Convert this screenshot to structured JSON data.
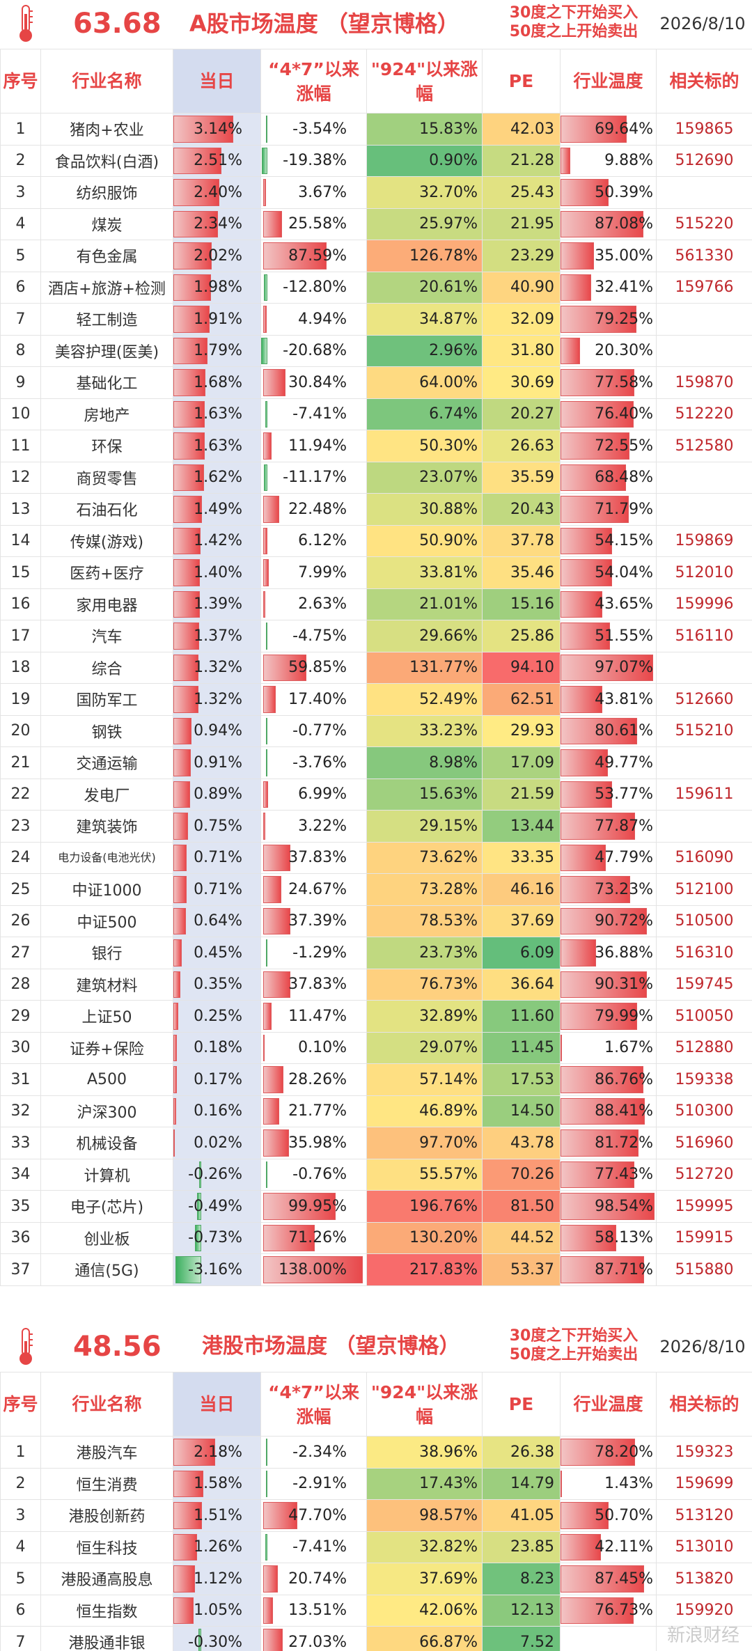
{
  "a_share": {
    "temperature": "63.68",
    "title": "A股市场温度 （望京博格）",
    "note_line1": "30度之下开始买入",
    "note_line2": "50度之上开始卖出",
    "date": "2026/8/10",
    "headers": {
      "no": "序号",
      "name": "行业名称",
      "day": "当日",
      "since47": "“4*7”以来涨幅",
      "since924": "\"924\"以来涨幅",
      "pe": "PE",
      "temp": "行业温度",
      "code": "相关标的"
    },
    "rows": [
      {
        "no": "1",
        "name": "猪肉+农业",
        "day": "3.14%",
        "d": 3.14,
        "s47": "-3.54%",
        "v47": -3.54,
        "s924": "15.83%",
        "v924": 15.83,
        "pe": "42.03",
        "vpe": 42.03,
        "temp": "69.64%",
        "vt": 69.64,
        "code": "159865"
      },
      {
        "no": "2",
        "name": "食品饮料(白酒)",
        "day": "2.51%",
        "d": 2.51,
        "s47": "-19.38%",
        "v47": -19.38,
        "s924": "0.90%",
        "v924": 0.9,
        "pe": "21.28",
        "vpe": 21.28,
        "temp": "9.88%",
        "vt": 9.88,
        "code": "512690"
      },
      {
        "no": "3",
        "name": "纺织服饰",
        "day": "2.40%",
        "d": 2.4,
        "s47": "3.67%",
        "v47": 3.67,
        "s924": "32.70%",
        "v924": 32.7,
        "pe": "25.43",
        "vpe": 25.43,
        "temp": "50.39%",
        "vt": 50.39,
        "code": ""
      },
      {
        "no": "4",
        "name": "煤炭",
        "day": "2.34%",
        "d": 2.34,
        "s47": "25.58%",
        "v47": 25.58,
        "s924": "25.97%",
        "v924": 25.97,
        "pe": "21.95",
        "vpe": 21.95,
        "temp": "87.08%",
        "vt": 87.08,
        "code": "515220"
      },
      {
        "no": "5",
        "name": "有色金属",
        "day": "2.02%",
        "d": 2.02,
        "s47": "87.59%",
        "v47": 87.59,
        "s924": "126.78%",
        "v924": 126.78,
        "pe": "23.29",
        "vpe": 23.29,
        "temp": "35.00%",
        "vt": 35.0,
        "code": "561330"
      },
      {
        "no": "6",
        "name": "酒店+旅游+检测",
        "day": "1.98%",
        "d": 1.98,
        "s47": "-12.80%",
        "v47": -12.8,
        "s924": "20.61%",
        "v924": 20.61,
        "pe": "40.90",
        "vpe": 40.9,
        "temp": "32.41%",
        "vt": 32.41,
        "code": "159766"
      },
      {
        "no": "7",
        "name": "轻工制造",
        "day": "1.91%",
        "d": 1.91,
        "s47": "4.94%",
        "v47": 4.94,
        "s924": "34.87%",
        "v924": 34.87,
        "pe": "32.09",
        "vpe": 32.09,
        "temp": "79.25%",
        "vt": 79.25,
        "code": ""
      },
      {
        "no": "8",
        "name": "美容护理(医美)",
        "day": "1.79%",
        "d": 1.79,
        "s47": "-20.68%",
        "v47": -20.68,
        "s924": "2.96%",
        "v924": 2.96,
        "pe": "31.80",
        "vpe": 31.8,
        "temp": "20.30%",
        "vt": 20.3,
        "code": ""
      },
      {
        "no": "9",
        "name": "基础化工",
        "day": "1.68%",
        "d": 1.68,
        "s47": "30.84%",
        "v47": 30.84,
        "s924": "64.00%",
        "v924": 64.0,
        "pe": "30.69",
        "vpe": 30.69,
        "temp": "77.58%",
        "vt": 77.58,
        "code": "159870"
      },
      {
        "no": "10",
        "name": "房地产",
        "day": "1.63%",
        "d": 1.63,
        "s47": "-7.41%",
        "v47": -7.41,
        "s924": "6.74%",
        "v924": 6.74,
        "pe": "20.27",
        "vpe": 20.27,
        "temp": "76.40%",
        "vt": 76.4,
        "code": "512220"
      },
      {
        "no": "11",
        "name": "环保",
        "day": "1.63%",
        "d": 1.63,
        "s47": "11.94%",
        "v47": 11.94,
        "s924": "50.30%",
        "v924": 50.3,
        "pe": "26.63",
        "vpe": 26.63,
        "temp": "72.55%",
        "vt": 72.55,
        "code": "512580"
      },
      {
        "no": "12",
        "name": "商贸零售",
        "day": "1.62%",
        "d": 1.62,
        "s47": "-11.17%",
        "v47": -11.17,
        "s924": "23.07%",
        "v924": 23.07,
        "pe": "35.59",
        "vpe": 35.59,
        "temp": "68.48%",
        "vt": 68.48,
        "code": ""
      },
      {
        "no": "13",
        "name": "石油石化",
        "day": "1.49%",
        "d": 1.49,
        "s47": "22.48%",
        "v47": 22.48,
        "s924": "30.88%",
        "v924": 30.88,
        "pe": "20.43",
        "vpe": 20.43,
        "temp": "71.79%",
        "vt": 71.79,
        "code": ""
      },
      {
        "no": "14",
        "name": "传媒(游戏)",
        "day": "1.42%",
        "d": 1.42,
        "s47": "6.12%",
        "v47": 6.12,
        "s924": "50.90%",
        "v924": 50.9,
        "pe": "37.78",
        "vpe": 37.78,
        "temp": "54.15%",
        "vt": 54.15,
        "code": "159869"
      },
      {
        "no": "15",
        "name": "医药+医疗",
        "day": "1.40%",
        "d": 1.4,
        "s47": "7.99%",
        "v47": 7.99,
        "s924": "33.81%",
        "v924": 33.81,
        "pe": "35.46",
        "vpe": 35.46,
        "temp": "54.04%",
        "vt": 54.04,
        "code": "512010"
      },
      {
        "no": "16",
        "name": "家用电器",
        "day": "1.39%",
        "d": 1.39,
        "s47": "2.63%",
        "v47": 2.63,
        "s924": "21.01%",
        "v924": 21.01,
        "pe": "15.16",
        "vpe": 15.16,
        "temp": "43.65%",
        "vt": 43.65,
        "code": "159996"
      },
      {
        "no": "17",
        "name": "汽车",
        "day": "1.37%",
        "d": 1.37,
        "s47": "-4.75%",
        "v47": -4.75,
        "s924": "29.66%",
        "v924": 29.66,
        "pe": "25.86",
        "vpe": 25.86,
        "temp": "51.55%",
        "vt": 51.55,
        "code": "516110"
      },
      {
        "no": "18",
        "name": "综合",
        "day": "1.32%",
        "d": 1.32,
        "s47": "59.85%",
        "v47": 59.85,
        "s924": "131.77%",
        "v924": 131.77,
        "pe": "94.10",
        "vpe": 94.1,
        "temp": "97.07%",
        "vt": 97.07,
        "code": ""
      },
      {
        "no": "19",
        "name": "国防军工",
        "day": "1.32%",
        "d": 1.32,
        "s47": "17.40%",
        "v47": 17.4,
        "s924": "52.49%",
        "v924": 52.49,
        "pe": "62.51",
        "vpe": 62.51,
        "temp": "43.81%",
        "vt": 43.81,
        "code": "512660"
      },
      {
        "no": "20",
        "name": "钢铁",
        "day": "0.94%",
        "d": 0.94,
        "s47": "-0.77%",
        "v47": -0.77,
        "s924": "33.23%",
        "v924": 33.23,
        "pe": "29.93",
        "vpe": 29.93,
        "temp": "80.61%",
        "vt": 80.61,
        "code": "515210"
      },
      {
        "no": "21",
        "name": "交通运输",
        "day": "0.91%",
        "d": 0.91,
        "s47": "-3.76%",
        "v47": -3.76,
        "s924": "8.98%",
        "v924": 8.98,
        "pe": "17.09",
        "vpe": 17.09,
        "temp": "49.77%",
        "vt": 49.77,
        "code": ""
      },
      {
        "no": "22",
        "name": "发电厂",
        "day": "0.89%",
        "d": 0.89,
        "s47": "6.99%",
        "v47": 6.99,
        "s924": "15.63%",
        "v924": 15.63,
        "pe": "21.59",
        "vpe": 21.59,
        "temp": "53.77%",
        "vt": 53.77,
        "code": "159611"
      },
      {
        "no": "23",
        "name": "建筑装饰",
        "day": "0.75%",
        "d": 0.75,
        "s47": "3.22%",
        "v47": 3.22,
        "s924": "29.15%",
        "v924": 29.15,
        "pe": "13.44",
        "vpe": 13.44,
        "temp": "77.87%",
        "vt": 77.87,
        "code": ""
      },
      {
        "no": "24",
        "name": "电力设备(电池光伏)",
        "small": true,
        "day": "0.71%",
        "d": 0.71,
        "s47": "37.83%",
        "v47": 37.83,
        "s924": "73.62%",
        "v924": 73.62,
        "pe": "33.35",
        "vpe": 33.35,
        "temp": "47.79%",
        "vt": 47.79,
        "code": "516090"
      },
      {
        "no": "25",
        "name": "中证1000",
        "day": "0.71%",
        "d": 0.71,
        "s47": "24.67%",
        "v47": 24.67,
        "s924": "73.28%",
        "v924": 73.28,
        "pe": "46.16",
        "vpe": 46.16,
        "temp": "73.23%",
        "vt": 73.23,
        "code": "512100"
      },
      {
        "no": "26",
        "name": "中证500",
        "day": "0.64%",
        "d": 0.64,
        "s47": "37.39%",
        "v47": 37.39,
        "s924": "78.53%",
        "v924": 78.53,
        "pe": "37.69",
        "vpe": 37.69,
        "temp": "90.72%",
        "vt": 90.72,
        "code": "510500"
      },
      {
        "no": "27",
        "name": "银行",
        "day": "0.45%",
        "d": 0.45,
        "s47": "-1.29%",
        "v47": -1.29,
        "s924": "23.73%",
        "v924": 23.73,
        "pe": "6.09",
        "vpe": 6.09,
        "temp": "36.88%",
        "vt": 36.88,
        "code": "516310"
      },
      {
        "no": "28",
        "name": "建筑材料",
        "day": "0.35%",
        "d": 0.35,
        "s47": "37.83%",
        "v47": 37.83,
        "s924": "76.73%",
        "v924": 76.73,
        "pe": "36.64",
        "vpe": 36.64,
        "temp": "90.31%",
        "vt": 90.31,
        "code": "159745"
      },
      {
        "no": "29",
        "name": "上证50",
        "day": "0.25%",
        "d": 0.25,
        "s47": "11.47%",
        "v47": 11.47,
        "s924": "32.89%",
        "v924": 32.89,
        "pe": "11.60",
        "vpe": 11.6,
        "temp": "79.99%",
        "vt": 79.99,
        "code": "510050"
      },
      {
        "no": "30",
        "name": "证券+保险",
        "day": "0.18%",
        "d": 0.18,
        "s47": "0.10%",
        "v47": 0.1,
        "s924": "29.07%",
        "v924": 29.07,
        "pe": "11.45",
        "vpe": 11.45,
        "temp": "1.67%",
        "vt": 1.67,
        "code": "512880"
      },
      {
        "no": "31",
        "name": "A500",
        "day": "0.17%",
        "d": 0.17,
        "s47": "28.26%",
        "v47": 28.26,
        "s924": "57.14%",
        "v924": 57.14,
        "pe": "17.53",
        "vpe": 17.53,
        "temp": "86.76%",
        "vt": 86.76,
        "code": "159338"
      },
      {
        "no": "32",
        "name": "沪深300",
        "day": "0.16%",
        "d": 0.16,
        "s47": "21.77%",
        "v47": 21.77,
        "s924": "46.89%",
        "v924": 46.89,
        "pe": "14.50",
        "vpe": 14.5,
        "temp": "88.41%",
        "vt": 88.41,
        "code": "510300"
      },
      {
        "no": "33",
        "name": "机械设备",
        "day": "0.02%",
        "d": 0.02,
        "s47": "35.98%",
        "v47": 35.98,
        "s924": "97.70%",
        "v924": 97.7,
        "pe": "43.78",
        "vpe": 43.78,
        "temp": "81.72%",
        "vt": 81.72,
        "code": "516960"
      },
      {
        "no": "34",
        "name": "计算机",
        "day": "-0.26%",
        "d": -0.26,
        "s47": "-0.76%",
        "v47": -0.76,
        "s924": "55.57%",
        "v924": 55.57,
        "pe": "70.26",
        "vpe": 70.26,
        "temp": "77.43%",
        "vt": 77.43,
        "code": "512720"
      },
      {
        "no": "35",
        "name": "电子(芯片)",
        "day": "-0.49%",
        "d": -0.49,
        "s47": "99.95%",
        "v47": 99.95,
        "s924": "196.76%",
        "v924": 196.76,
        "pe": "81.50",
        "vpe": 81.5,
        "temp": "98.54%",
        "vt": 98.54,
        "code": "159995"
      },
      {
        "no": "36",
        "name": "创业板",
        "day": "-0.73%",
        "d": -0.73,
        "s47": "71.26%",
        "v47": 71.26,
        "s924": "130.20%",
        "v924": 130.2,
        "pe": "44.52",
        "vpe": 44.52,
        "temp": "58.13%",
        "vt": 58.13,
        "code": "159915"
      },
      {
        "no": "37",
        "name": "通信(5G)",
        "day": "-3.16%",
        "d": -3.16,
        "s47": "138.00%",
        "v47": 138.0,
        "s924": "217.83%",
        "v924": 217.83,
        "pe": "53.37",
        "vpe": 53.37,
        "temp": "87.71%",
        "vt": 87.71,
        "code": "515880"
      }
    ]
  },
  "hk_share": {
    "temperature": "48.56",
    "title": "港股市场温度 （望京博格）",
    "note_line1": "30度之下开始买入",
    "note_line2": "50度之上开始卖出",
    "date": "2026/8/10",
    "headers": {
      "no": "序号",
      "name": "行业名称",
      "day": "当日",
      "since47": "“4*7”以来涨幅",
      "since924": "\"924\"以来涨幅",
      "pe": "PE",
      "temp": "行业温度",
      "code": "相关标的"
    },
    "rows": [
      {
        "no": "1",
        "name": "港股汽车",
        "day": "2.18%",
        "d": 2.18,
        "s47": "-2.34%",
        "v47": -2.34,
        "s924": "38.96%",
        "v924": 38.96,
        "pe": "26.38",
        "vpe": 26.38,
        "temp": "78.20%",
        "vt": 78.2,
        "code": "159323"
      },
      {
        "no": "2",
        "name": "恒生消费",
        "day": "1.58%",
        "d": 1.58,
        "s47": "-2.91%",
        "v47": -2.91,
        "s924": "17.43%",
        "v924": 17.43,
        "pe": "14.79",
        "vpe": 14.79,
        "temp": "1.43%",
        "vt": 1.43,
        "code": "159699"
      },
      {
        "no": "3",
        "name": "港股创新药",
        "day": "1.51%",
        "d": 1.51,
        "s47": "47.70%",
        "v47": 47.7,
        "s924": "98.57%",
        "v924": 98.57,
        "pe": "41.05",
        "vpe": 41.05,
        "temp": "50.70%",
        "vt": 50.7,
        "code": "513120"
      },
      {
        "no": "4",
        "name": "恒生科技",
        "day": "1.26%",
        "d": 1.26,
        "s47": "-7.41%",
        "v47": -7.41,
        "s924": "32.82%",
        "v924": 32.82,
        "pe": "23.85",
        "vpe": 23.85,
        "temp": "42.11%",
        "vt": 42.11,
        "code": "513010"
      },
      {
        "no": "5",
        "name": "港股通高股息",
        "day": "1.12%",
        "d": 1.12,
        "s47": "20.74%",
        "v47": 20.74,
        "s924": "37.69%",
        "v924": 37.69,
        "pe": "8.23",
        "vpe": 8.23,
        "temp": "87.45%",
        "vt": 87.45,
        "code": "513820"
      },
      {
        "no": "6",
        "name": "恒生指数",
        "day": "1.05%",
        "d": 1.05,
        "s47": "13.51%",
        "v47": 13.51,
        "s924": "42.06%",
        "v924": 42.06,
        "pe": "12.13",
        "vpe": 12.13,
        "temp": "76.73%",
        "vt": 76.73,
        "code": "159920"
      },
      {
        "no": "7",
        "name": "港股通非银",
        "day": "-0.30%",
        "d": -0.3,
        "s47": "27.03%",
        "v47": 27.03,
        "s924": "66.87%",
        "v924": 66.87,
        "pe": "7.52",
        "vpe": 7.52,
        "temp": "",
        "vt": 0,
        "code": ""
      }
    ]
  },
  "watermark": "新浪财经"
}
